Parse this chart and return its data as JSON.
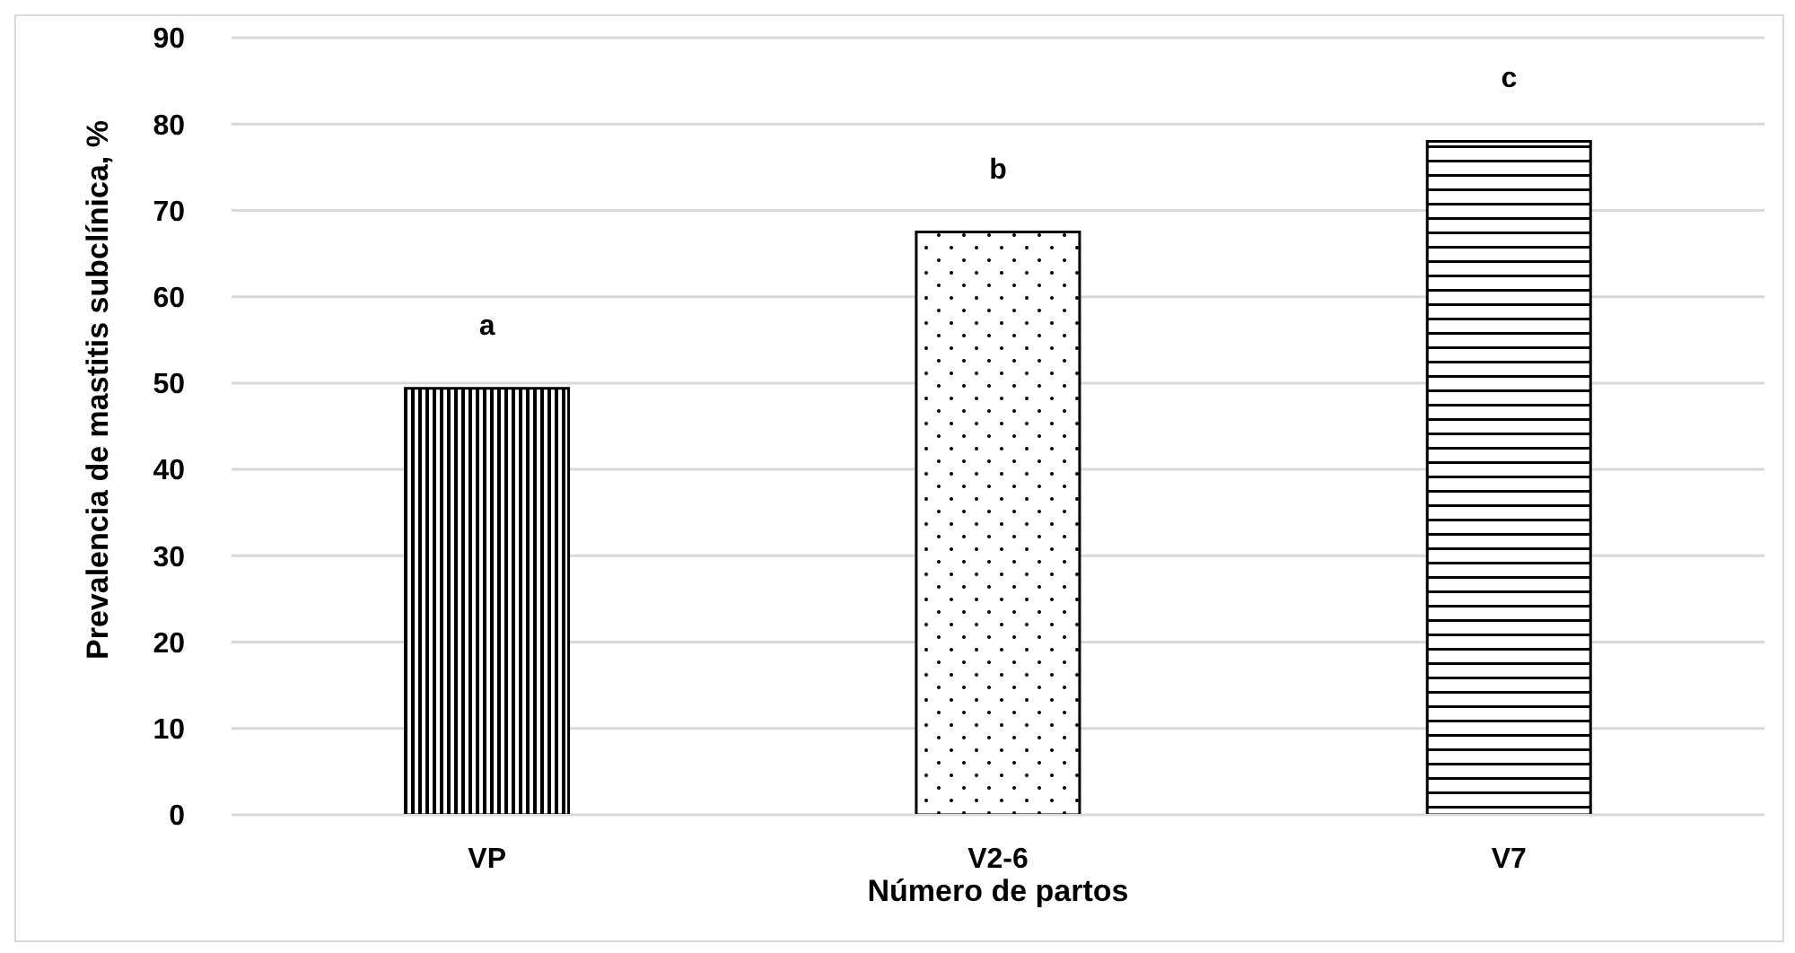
{
  "chart_data": {
    "type": "bar",
    "xlabel": "Número de  partos",
    "ylabel": "Prevalencia de mastitis subclínica, %",
    "categories": [
      "VP",
      "V2-6",
      "V7"
    ],
    "values": [
      49.4,
      67.5,
      78.0
    ],
    "colors": [
      "#000000",
      "#000000",
      "#000000"
    ],
    "ylim": [
      0,
      90
    ],
    "yticks": [
      0,
      10,
      20,
      30,
      40,
      50,
      60,
      70,
      80,
      90
    ],
    "grid": "y",
    "annotations": [
      "a",
      "b",
      "c"
    ]
  }
}
